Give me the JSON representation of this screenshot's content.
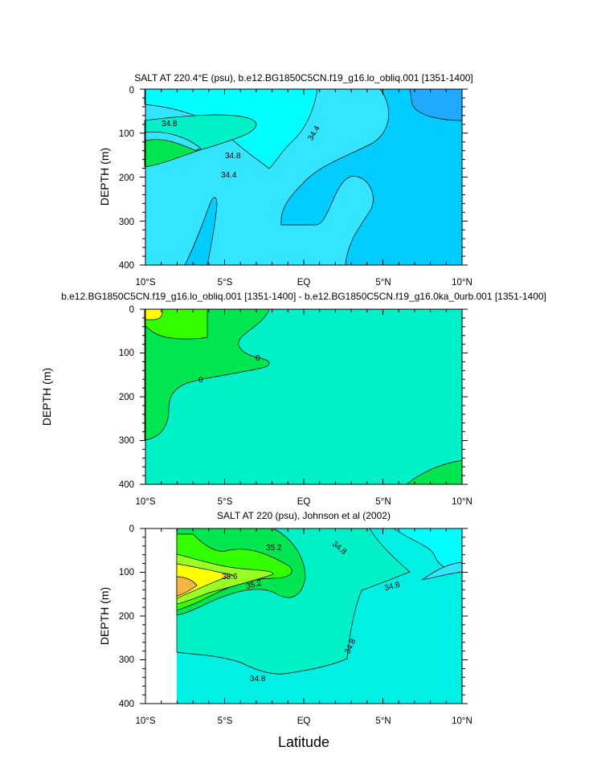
{
  "chart_data": [
    {
      "type": "contour",
      "title": "SALT AT 220.4°E (psu), b.e12.BG1850C5CN.f19_g16.lo_obliq.001 [1351-1400]",
      "ylabel": "DEPTH (m)",
      "xlabel": "",
      "xlim": [
        -10,
        10
      ],
      "ylim": [
        400,
        0
      ],
      "xticks": [
        "10°S",
        "5°S",
        "EQ",
        "5°N",
        "10°N"
      ],
      "yticks": [
        "0",
        "100",
        "200",
        "300",
        "400"
      ],
      "contour_labels": [
        "34.8",
        "34.8",
        "34.4",
        "34.4"
      ]
    },
    {
      "type": "contour",
      "title": "b.e12.BG1850C5CN.f19_g16.lo_obliq.001 [1351-1400] - b.e12.BG1850C5CN.f19_g16.0ka_0urb.001 [1351-1400]",
      "ylabel": "DEPTH (m)",
      "xlabel": "",
      "xlim": [
        -10,
        10
      ],
      "ylim": [
        400,
        0
      ],
      "xticks": [
        "10°S",
        "5°S",
        "EQ",
        "5°N",
        "10°N"
      ],
      "yticks": [
        "0",
        "100",
        "200",
        "300",
        "400"
      ],
      "contour_labels": [
        "0",
        "0"
      ]
    },
    {
      "type": "contour",
      "title": "SALT AT 220 (psu), Johnson et al (2002)",
      "ylabel": "DEPTH (m)",
      "xlabel": "Latitude",
      "xlim": [
        -10,
        10
      ],
      "ylim": [
        400,
        0
      ],
      "xticks": [
        "10°S",
        "5°S",
        "EQ",
        "5°N",
        "10°N"
      ],
      "yticks": [
        "0",
        "100",
        "200",
        "300",
        "400"
      ],
      "contour_labels": [
        "35.2",
        "34.8",
        "35.6",
        "35.2",
        "34.8",
        "34.8",
        "34.8"
      ]
    }
  ],
  "colors": {
    "cyan_pale": "#00F0E6",
    "cyan": "#00FFFF",
    "sky": "#33E5FF",
    "blue1": "#00CCFF",
    "blue2": "#1FA9FF",
    "aqua_green": "#00F0C8",
    "green": "#00E650",
    "green2": "#33FF00",
    "lime": "#99FF22",
    "yellow": "#FFFF00",
    "orange": "#F5B444"
  }
}
